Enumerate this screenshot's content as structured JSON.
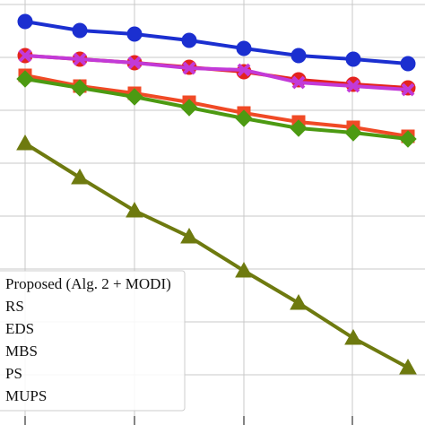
{
  "chart_data": {
    "type": "line",
    "x": [
      28,
      89,
      150,
      211,
      272,
      333,
      394,
      455
    ],
    "xlim": [
      0,
      474
    ],
    "ylim": [
      0,
      474
    ],
    "xticks": [
      28,
      150,
      272,
      393
    ],
    "yticks": [
      56,
      115,
      174,
      233,
      292,
      351,
      410,
      469
    ],
    "grid": true,
    "legend": "lower left",
    "series": [
      {
        "name": "Proposed (Alg. 2 + MODI)",
        "color": "#1b2fd0",
        "marker": "circle",
        "values": [
          450,
          440,
          436,
          429,
          420,
          412,
          408,
          403
        ]
      },
      {
        "name": "RS",
        "color": "#e4231d",
        "marker": "circle",
        "values": [
          412,
          408,
          404,
          399,
          394,
          385,
          380,
          376
        ]
      },
      {
        "name": "EDS",
        "color": "#c23ad8",
        "marker": "x",
        "values": [
          412,
          408,
          404,
          398,
          396,
          382,
          378,
          374
        ]
      },
      {
        "name": "MBS",
        "color": "#f04a26",
        "marker": "square",
        "values": [
          390,
          378,
          370,
          360,
          348,
          338,
          332,
          322
        ]
      },
      {
        "name": "PS",
        "color": "#4c9a12",
        "marker": "diamond",
        "values": [
          386,
          376,
          366,
          354,
          342,
          331,
          326,
          319
        ]
      },
      {
        "name": "MUPS",
        "color": "#6e7a0f",
        "marker": "triangle",
        "values": [
          314,
          276,
          239,
          210,
          172,
          136,
          97,
          64
        ]
      }
    ]
  }
}
